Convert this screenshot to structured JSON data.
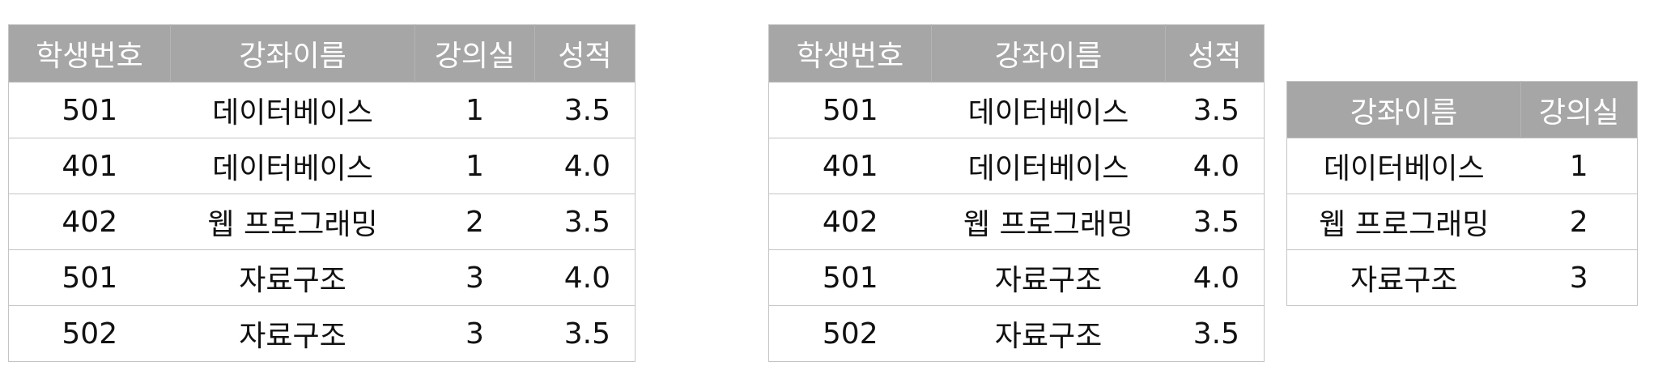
{
  "table1": {
    "headers": [
      "학생번호",
      "강좌이름",
      "강의실",
      "성적"
    ],
    "rows": [
      [
        "501",
        "데이터베이스",
        "1",
        "3.5"
      ],
      [
        "401",
        "데이터베이스",
        "1",
        "4.0"
      ],
      [
        "402",
        "웹 프로그래밍",
        "2",
        "3.5"
      ],
      [
        "501",
        "자료구조",
        "3",
        "4.0"
      ],
      [
        "502",
        "자료구조",
        "3",
        "3.5"
      ]
    ]
  },
  "table2": {
    "headers": [
      "학생번호",
      "강좌이름",
      "성적"
    ],
    "rows": [
      [
        "501",
        "데이터베이스",
        "3.5"
      ],
      [
        "401",
        "데이터베이스",
        "4.0"
      ],
      [
        "402",
        "웹 프로그래밍",
        "3.5"
      ],
      [
        "501",
        "자료구조",
        "4.0"
      ],
      [
        "502",
        "자료구조",
        "3.5"
      ]
    ]
  },
  "table3": {
    "headers": [
      "강좌이름",
      "강의실"
    ],
    "rows": [
      [
        "데이터베이스",
        "1"
      ],
      [
        "웹 프로그래밍",
        "2"
      ],
      [
        "자료구조",
        "3"
      ]
    ]
  },
  "colors": {
    "header_bg": "#a6a6a6",
    "header_text": "#ffffff",
    "border": "#c4c4c4"
  }
}
